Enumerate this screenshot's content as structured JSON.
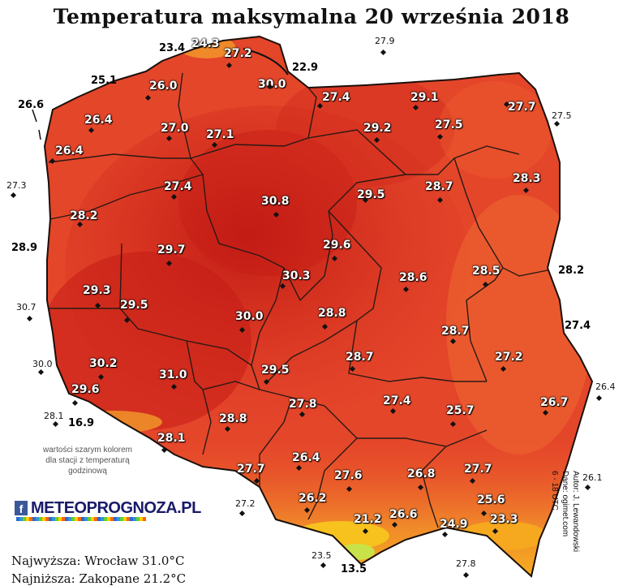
{
  "title": "Temperatura maksymalna 20 września 2018",
  "colors": {
    "background": "#ffffff",
    "land_base": "#e4462a",
    "land_hot": "#c51c16",
    "land_warm": "#ef6a30",
    "mountain": "#f6a81f",
    "mountain_high": "#c9e24a",
    "borders": "#2a1a14"
  },
  "stations_inside": [
    {
      "name": "",
      "value": "24.3"
    },
    {
      "name": "",
      "value": "27.2"
    },
    {
      "name": "",
      "value": "26.0"
    },
    {
      "name": "",
      "value": "30.0"
    },
    {
      "name": "",
      "value": "27.4"
    },
    {
      "name": "",
      "value": "29.1"
    },
    {
      "name": "",
      "value": "26.4"
    },
    {
      "name": "",
      "value": "27.0"
    },
    {
      "name": "",
      "value": "27.1"
    },
    {
      "name": "",
      "value": "29.2"
    },
    {
      "name": "",
      "value": "27.5"
    },
    {
      "name": "",
      "value": "27.7"
    },
    {
      "name": "",
      "value": "26.4"
    },
    {
      "name": "",
      "value": "28.3"
    },
    {
      "name": "",
      "value": "27.4"
    },
    {
      "name": "",
      "value": "30.8"
    },
    {
      "name": "",
      "value": "29.5"
    },
    {
      "name": "",
      "value": "28.7"
    },
    {
      "name": "",
      "value": "28.2"
    },
    {
      "name": "",
      "value": "29.7"
    },
    {
      "name": "",
      "value": "29.6"
    },
    {
      "name": "",
      "value": "30.3"
    },
    {
      "name": "",
      "value": "28.6"
    },
    {
      "name": "",
      "value": "28.5"
    },
    {
      "name": "",
      "value": "29.3"
    },
    {
      "name": "",
      "value": "29.5"
    },
    {
      "name": "",
      "value": "30.0"
    },
    {
      "name": "",
      "value": "28.8"
    },
    {
      "name": "",
      "value": "28.7"
    },
    {
      "name": "",
      "value": "30.2"
    },
    {
      "name": "",
      "value": "31.0"
    },
    {
      "name": "",
      "value": "29.5"
    },
    {
      "name": "",
      "value": "28.7"
    },
    {
      "name": "",
      "value": "27.2"
    },
    {
      "name": "",
      "value": "29.6"
    },
    {
      "name": "",
      "value": "27.8"
    },
    {
      "name": "",
      "value": "27.4"
    },
    {
      "name": "",
      "value": "25.7"
    },
    {
      "name": "",
      "value": "26.7"
    },
    {
      "name": "",
      "value": "28.8"
    },
    {
      "name": "",
      "value": "28.1"
    },
    {
      "name": "",
      "value": "26.4"
    },
    {
      "name": "",
      "value": "27.7"
    },
    {
      "name": "",
      "value": "27.6"
    },
    {
      "name": "",
      "value": "26.8"
    },
    {
      "name": "",
      "value": "27.7"
    },
    {
      "name": "",
      "value": "26.2"
    },
    {
      "name": "",
      "value": "26.6"
    },
    {
      "name": "",
      "value": "24.9"
    },
    {
      "name": "",
      "value": "25.6"
    },
    {
      "name": "",
      "value": "23.3"
    },
    {
      "name": "",
      "value": "21.2"
    }
  ],
  "stations_outside": [
    {
      "value": "23.4"
    },
    {
      "value": "22.9"
    },
    {
      "value": "25.1"
    },
    {
      "value": "26.6"
    },
    {
      "value": "28.9"
    },
    {
      "value": "28.2"
    },
    {
      "value": "27.4"
    },
    {
      "value": "16.9"
    },
    {
      "value": "13.5"
    }
  ],
  "stations_gray": [
    {
      "value": "27.9"
    },
    {
      "value": "27.5"
    },
    {
      "value": "27.3"
    },
    {
      "value": "30.7"
    },
    {
      "value": "30.0"
    },
    {
      "value": "28.1"
    },
    {
      "value": "26.4"
    },
    {
      "value": "26.1"
    },
    {
      "value": "27.2"
    },
    {
      "value": "23.5"
    },
    {
      "value": "27.8"
    }
  ],
  "note": "wartości szarym kolorem dla stacji z temperaturą godzinową",
  "brand": {
    "icon": "f",
    "text": "METEOPROGNOZA.PL"
  },
  "credits": {
    "author": "Autor: J. Lewandowski",
    "data": "Dane: ogimet.com",
    "hours": "6 - 18 UTC"
  },
  "stats": {
    "max": "Najwyższa: Wrocław 31.0°C",
    "min": "Najniższa: Zakopane 21.2°C"
  }
}
